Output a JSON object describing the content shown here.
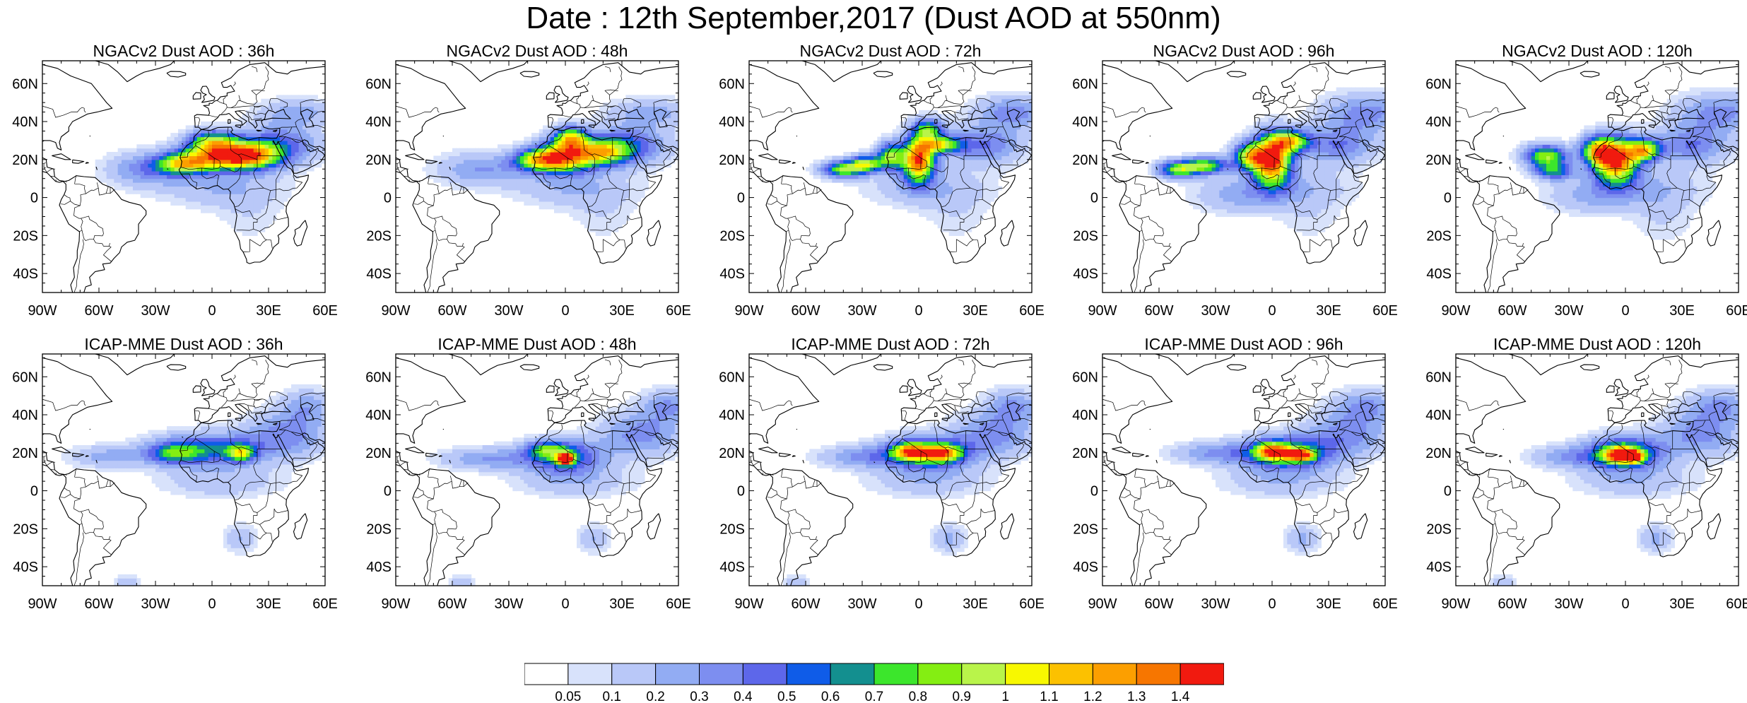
{
  "title": "Date : 12th September,2017 (Dust AOD at 550nm)",
  "lat_labels": [
    "60N",
    "40N",
    "20N",
    "0",
    "20S",
    "40S"
  ],
  "lon_labels": [
    "90W",
    "60W",
    "30W",
    "0",
    "30E",
    "60E"
  ],
  "colors": {
    "coastline": "#000000",
    "frame": "#000000"
  },
  "panels": [
    {
      "title": "NGACv2 Dust AOD : 36h",
      "stage": 0,
      "model": "ngac"
    },
    {
      "title": "NGACv2 Dust AOD : 48h",
      "stage": 1,
      "model": "ngac"
    },
    {
      "title": "NGACv2 Dust AOD : 72h",
      "stage": 2,
      "model": "ngac"
    },
    {
      "title": "NGACv2 Dust AOD : 96h",
      "stage": 3,
      "model": "ngac"
    },
    {
      "title": "NGACv2 Dust AOD : 120h",
      "stage": 4,
      "model": "ngac"
    },
    {
      "title": "ICAP-MME Dust AOD : 36h",
      "stage": 0,
      "model": "icap"
    },
    {
      "title": "ICAP-MME Dust AOD : 48h",
      "stage": 1,
      "model": "icap"
    },
    {
      "title": "ICAP-MME Dust AOD : 72h",
      "stage": 2,
      "model": "icap"
    },
    {
      "title": "ICAP-MME Dust AOD : 96h",
      "stage": 3,
      "model": "icap"
    },
    {
      "title": "ICAP-MME Dust AOD : 120h",
      "stage": 4,
      "model": "icap"
    }
  ],
  "colorbar": {
    "labels": [
      "0.05",
      "0.1",
      "0.2",
      "0.3",
      "0.4",
      "0.5",
      "0.6",
      "0.7",
      "0.8",
      "0.9",
      "1",
      "1.1",
      "1.2",
      "1.3",
      "1.4"
    ],
    "colors": [
      "#ffffff",
      "#d8e2fb",
      "#b9c8f8",
      "#92acf3",
      "#7d8ef0",
      "#5d67ea",
      "#0f5ce8",
      "#138f8f",
      "#3ce62c",
      "#84ee12",
      "#b9f44a",
      "#f8f800",
      "#fcc100",
      "#fc9f00",
      "#f77600",
      "#f11a0f"
    ]
  }
}
